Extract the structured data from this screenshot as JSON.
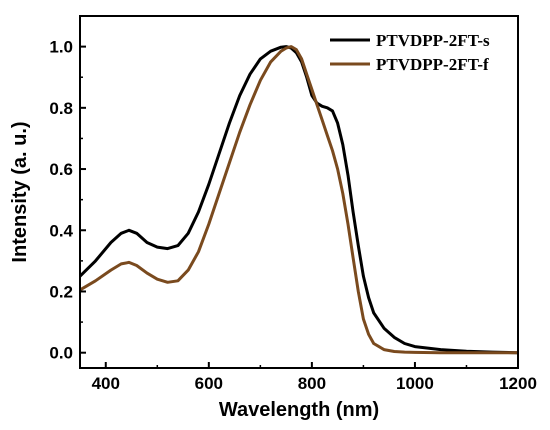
{
  "chart_data": {
    "type": "line",
    "title": "",
    "xlabel": "Wavelength (nm)",
    "ylabel": "Intensity (a. u.)",
    "xlim": [
      350,
      1200
    ],
    "ylim": [
      -0.05,
      1.1
    ],
    "xticks": [
      400,
      600,
      800,
      1000,
      1200
    ],
    "xtick_labels": [
      "400",
      "600",
      "800",
      "1000",
      "1200"
    ],
    "yticks": [
      0.0,
      0.2,
      0.4,
      0.6,
      0.8,
      1.0
    ],
    "ytick_labels": [
      "0.0",
      "0.2",
      "0.4",
      "0.6",
      "0.8",
      "1.0"
    ],
    "grid": false,
    "legend_position": "top-right",
    "series": [
      {
        "name": "PTVDPP-2FT-s",
        "color": "#000000",
        "x": [
          350,
          380,
          410,
          430,
          445,
          460,
          480,
          500,
          520,
          540,
          560,
          580,
          600,
          620,
          640,
          660,
          680,
          700,
          720,
          740,
          750,
          760,
          770,
          780,
          790,
          800,
          810,
          820,
          830,
          840,
          850,
          860,
          870,
          880,
          890,
          900,
          910,
          920,
          940,
          960,
          980,
          1000,
          1050,
          1100,
          1150,
          1200
        ],
        "y": [
          0.25,
          0.3,
          0.36,
          0.39,
          0.4,
          0.39,
          0.36,
          0.345,
          0.34,
          0.35,
          0.39,
          0.46,
          0.55,
          0.65,
          0.75,
          0.84,
          0.91,
          0.96,
          0.985,
          0.998,
          1.0,
          0.995,
          0.98,
          0.95,
          0.9,
          0.84,
          0.815,
          0.805,
          0.8,
          0.79,
          0.75,
          0.68,
          0.58,
          0.46,
          0.35,
          0.25,
          0.18,
          0.13,
          0.08,
          0.05,
          0.03,
          0.02,
          0.01,
          0.005,
          0.002,
          0.0
        ]
      },
      {
        "name": "PTVDPP-2FT-f",
        "color": "#7a4a1e",
        "x": [
          350,
          380,
          410,
          430,
          445,
          460,
          480,
          500,
          520,
          540,
          560,
          580,
          600,
          620,
          640,
          660,
          680,
          700,
          720,
          740,
          750,
          760,
          770,
          780,
          790,
          800,
          810,
          820,
          830,
          840,
          850,
          860,
          870,
          880,
          890,
          900,
          910,
          920,
          940,
          960,
          980,
          1000,
          1050,
          1100,
          1150,
          1200
        ],
        "y": [
          0.205,
          0.235,
          0.27,
          0.29,
          0.295,
          0.285,
          0.26,
          0.24,
          0.23,
          0.235,
          0.27,
          0.33,
          0.42,
          0.52,
          0.62,
          0.72,
          0.81,
          0.89,
          0.95,
          0.985,
          0.995,
          1.0,
          0.99,
          0.96,
          0.91,
          0.86,
          0.81,
          0.76,
          0.71,
          0.66,
          0.6,
          0.52,
          0.42,
          0.31,
          0.2,
          0.11,
          0.06,
          0.03,
          0.01,
          0.004,
          0.002,
          0.001,
          0.0,
          0.0,
          0.0,
          0.0
        ]
      }
    ]
  }
}
